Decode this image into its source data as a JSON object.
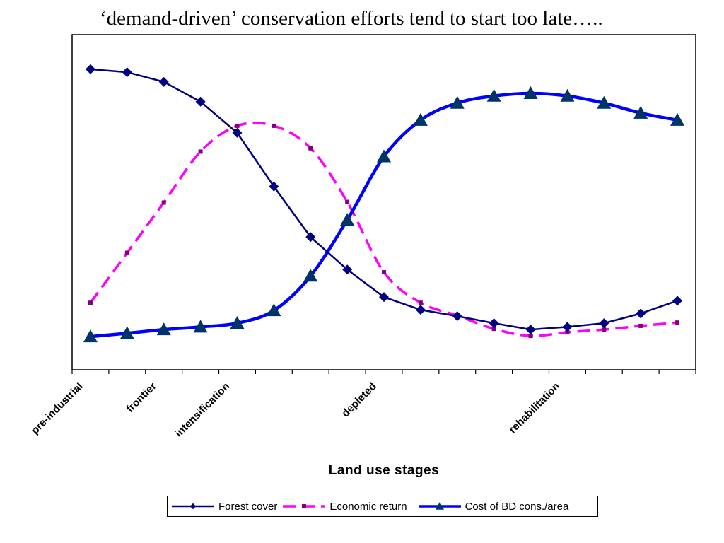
{
  "chart_data": {
    "type": "line",
    "title": "‘demand-driven’ conservation efforts tend to start too late…..",
    "xlabel": "Land use stages",
    "ylabel": "",
    "ylim": [
      0,
      100
    ],
    "grid": false,
    "legend_placement": "bottom",
    "categories": [
      "pre-industrial",
      "",
      "frontier",
      "",
      "intensification",
      "",
      "",
      "",
      "depleted",
      "",
      "",
      "",
      "",
      "rehabilitation",
      "",
      "",
      ""
    ],
    "series": [
      {
        "name": "Forest cover",
        "color": "#000080",
        "marker": "diamond",
        "line_style": "solid",
        "smooth": false,
        "values": [
          89.7,
          88.8,
          85.9,
          80.0,
          70.7,
          54.7,
          39.6,
          29.9,
          21.7,
          17.9,
          16.0,
          13.9,
          12.0,
          12.8,
          13.9,
          16.8,
          20.6
        ]
      },
      {
        "name": "Economic return",
        "color": "#FF00FF",
        "marker_color": "#800080",
        "marker": "square",
        "line_style": "dashed",
        "smooth": true,
        "values": [
          20.0,
          34.9,
          49.9,
          65.1,
          72.8,
          72.8,
          66.1,
          50.1,
          29.1,
          20.0,
          16.2,
          12.2,
          10.1,
          11.2,
          12.0,
          13.1,
          14.1
        ]
      },
      {
        "name": "Cost of BD cons./area",
        "color": "#0000FF",
        "marker_color": "#003366",
        "marker": "triangle",
        "line_style": "solid",
        "smooth": true,
        "values": [
          9.9,
          10.9,
          12.0,
          12.8,
          13.9,
          17.7,
          28.0,
          44.7,
          63.6,
          74.5,
          79.6,
          81.7,
          82.5,
          81.7,
          79.6,
          76.6,
          74.5
        ]
      }
    ]
  }
}
